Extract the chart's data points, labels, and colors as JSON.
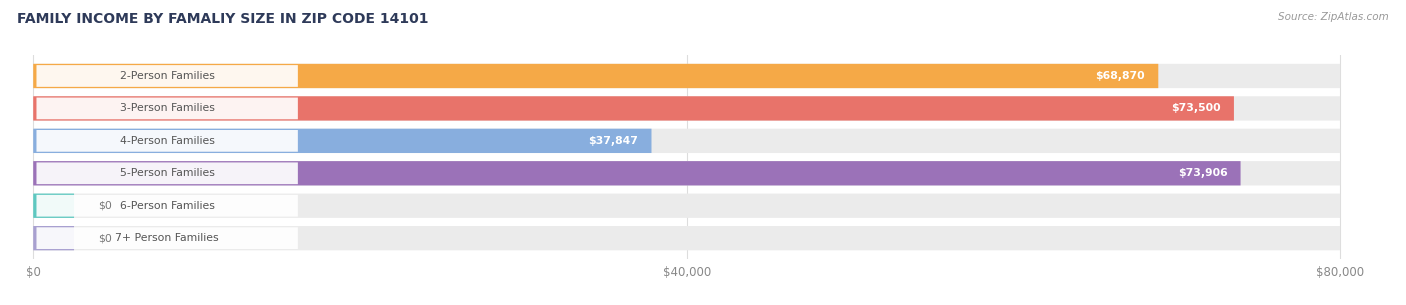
{
  "title": "FAMILY INCOME BY FAMALIY SIZE IN ZIP CODE 14101",
  "source": "Source: ZipAtlas.com",
  "categories": [
    "2-Person Families",
    "3-Person Families",
    "4-Person Families",
    "5-Person Families",
    "6-Person Families",
    "7+ Person Families"
  ],
  "values": [
    68870,
    73500,
    37847,
    73906,
    0,
    0
  ],
  "bar_colors": [
    "#F5A947",
    "#E8736A",
    "#88AEDE",
    "#9B72B8",
    "#5EC8C0",
    "#A8A0D0"
  ],
  "xlim": [
    0,
    80000
  ],
  "xticks": [
    0,
    40000,
    80000
  ],
  "xtick_labels": [
    "$0",
    "$40,000",
    "$80,000"
  ],
  "figsize": [
    14.06,
    3.05
  ],
  "dpi": 100,
  "bar_height": 0.75,
  "track_color": "#EBEBEB",
  "label_bg_color": "#FFFFFF",
  "label_text_color": "#555555",
  "value_text_color": "#FFFFFF",
  "grid_color": "#DDDDDD",
  "title_color": "#2E3A59",
  "source_color": "#999999"
}
